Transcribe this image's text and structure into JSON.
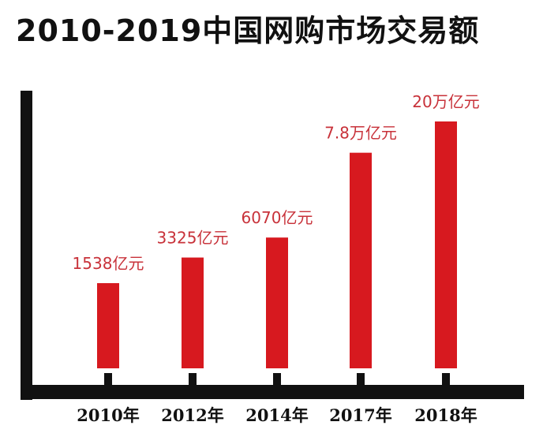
{
  "chart_data": {
    "type": "bar",
    "title": "2010-2019中国网购市场交易额",
    "categories": [
      "2010年",
      "2012年",
      "2014年",
      "2017年",
      "2018年"
    ],
    "data_labels": [
      "1538亿元",
      "3325亿元",
      "6070亿元",
      "7.8万亿元",
      "20万亿元"
    ],
    "values": [
      1538,
      3325,
      6070,
      78000,
      200000
    ],
    "xlabel": "",
    "ylabel": "",
    "grid": false,
    "legend": "none",
    "colors": {
      "bar": "#d7191f",
      "label": "#c8323a",
      "axis": "#111111",
      "tick_label": "#111111"
    }
  }
}
